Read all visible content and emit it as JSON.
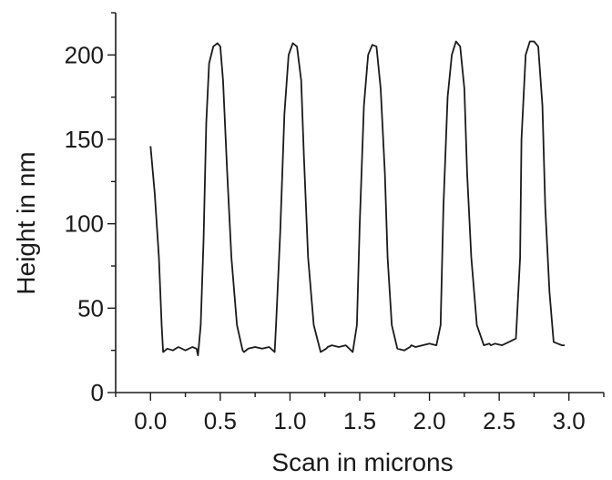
{
  "chart_data": {
    "type": "line",
    "title": "",
    "xlabel": "Scan in microns",
    "ylabel": "Height in nm",
    "xlim": [
      -0.25,
      3.25
    ],
    "ylim": [
      0,
      225
    ],
    "x_ticks": [
      0.0,
      0.5,
      1.0,
      1.5,
      2.0,
      2.5,
      3.0
    ],
    "x_tick_labels": [
      "0.0",
      "0.5",
      "1.0",
      "1.5",
      "2.0",
      "2.5",
      "3.0"
    ],
    "y_ticks": [
      0,
      50,
      100,
      150,
      200
    ],
    "y_tick_labels": [
      "0",
      "50",
      "100",
      "150",
      "200"
    ],
    "grid": false,
    "line_color": "#1a1a1a",
    "series": [
      {
        "x": [
          0.0,
          0.03,
          0.06,
          0.08,
          0.09,
          0.12,
          0.16,
          0.2,
          0.25,
          0.3,
          0.33,
          0.34,
          0.36,
          0.38,
          0.4,
          0.42,
          0.45,
          0.48,
          0.5,
          0.52,
          0.55,
          0.58,
          0.62,
          0.66,
          0.67,
          0.7,
          0.75,
          0.8,
          0.85,
          0.89,
          0.9,
          0.93,
          0.96,
          0.99,
          1.02,
          1.05,
          1.08,
          1.1,
          1.13,
          1.17,
          1.22,
          1.26,
          1.27,
          1.3,
          1.35,
          1.4,
          1.45,
          1.48,
          1.5,
          1.53,
          1.56,
          1.59,
          1.62,
          1.65,
          1.68,
          1.7,
          1.73,
          1.77,
          1.82,
          1.86,
          1.87,
          1.9,
          1.95,
          2.0,
          2.05,
          2.08,
          2.1,
          2.13,
          2.16,
          2.19,
          2.22,
          2.25,
          2.27,
          2.3,
          2.34,
          2.39,
          2.43,
          2.44,
          2.47,
          2.52,
          2.57,
          2.62,
          2.65,
          2.66,
          2.69,
          2.72,
          2.75,
          2.78,
          2.81,
          2.83,
          2.86,
          2.89,
          2.92,
          2.95,
          2.97
        ],
        "y": [
          146,
          118,
          80,
          40,
          24,
          26,
          25,
          27,
          25,
          27,
          26,
          22,
          40,
          90,
          160,
          195,
          205,
          207,
          205,
          185,
          130,
          80,
          40,
          25,
          24,
          26,
          27,
          26,
          27,
          24,
          40,
          95,
          165,
          200,
          207,
          205,
          185,
          140,
          80,
          40,
          24,
          26,
          27,
          28,
          27,
          28,
          24,
          40,
          100,
          170,
          200,
          206,
          205,
          180,
          130,
          80,
          40,
          26,
          25,
          27,
          28,
          27,
          28,
          29,
          28,
          40,
          110,
          175,
          200,
          208,
          205,
          180,
          130,
          80,
          40,
          28,
          29,
          28,
          29,
          28,
          30,
          32,
          80,
          150,
          200,
          208,
          208,
          205,
          170,
          110,
          60,
          30,
          29,
          28,
          28
        ]
      }
    ]
  }
}
